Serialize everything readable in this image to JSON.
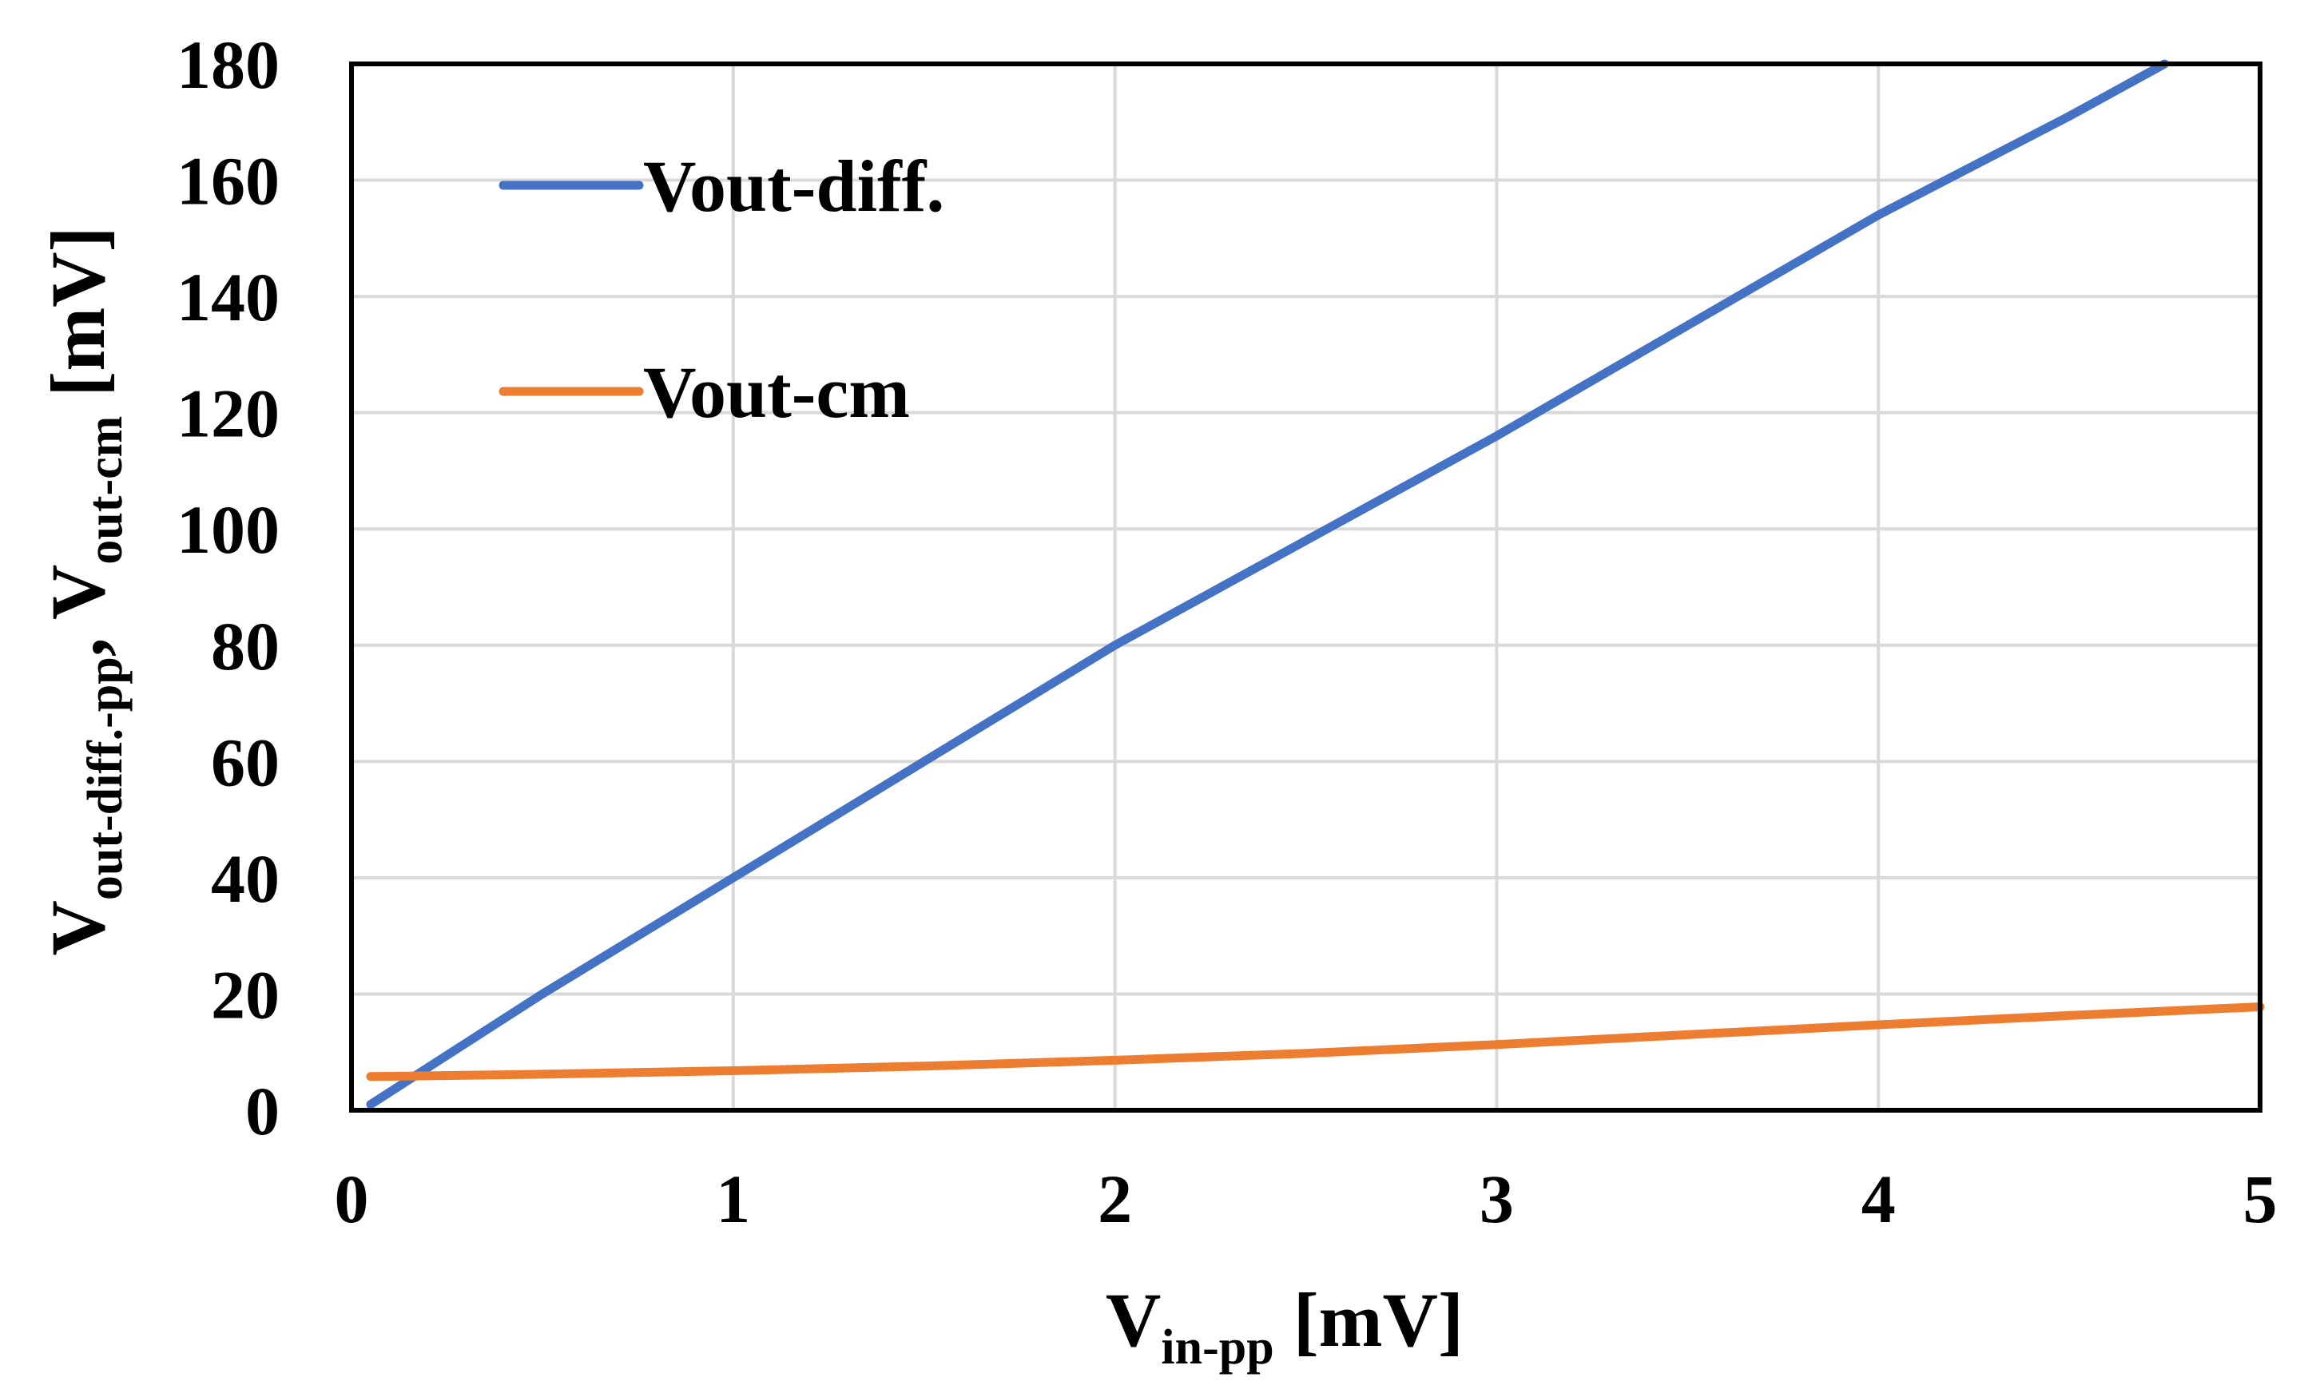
{
  "chart_data": {
    "type": "line",
    "title": "",
    "xlabel": {
      "main": "V",
      "sub": "in-pp",
      "unit": " [mV]"
    },
    "ylabel": {
      "main1": "V",
      "sub1": "out-diff.-pp",
      "sep": ", ",
      "main2": "V",
      "sub2": "out-cm",
      "unit": " [mV]"
    },
    "xlim": [
      0,
      5
    ],
    "ylim": [
      0,
      180
    ],
    "xticks": [
      "0",
      "1",
      "2",
      "3",
      "4",
      "5"
    ],
    "yticks": [
      "0",
      "20",
      "40",
      "60",
      "80",
      "100",
      "120",
      "140",
      "160",
      "180"
    ],
    "grid": true,
    "legend_position": "top-left",
    "series": [
      {
        "name": "Vout-diff.",
        "color": "#4472C4",
        "x": [
          0.05,
          0.5,
          1.0,
          1.5,
          2.0,
          2.5,
          3.0,
          3.5,
          4.0,
          4.5,
          4.75
        ],
        "y": [
          1,
          20,
          40,
          60,
          80,
          98,
          116,
          135,
          154,
          171,
          180
        ]
      },
      {
        "name": "Vout-cm",
        "color": "#ED7D31",
        "x": [
          0.05,
          0.5,
          1.0,
          1.5,
          2.0,
          2.5,
          3.0,
          3.5,
          4.0,
          4.5,
          5.0
        ],
        "y": [
          5.8,
          6.2,
          6.8,
          7.6,
          8.6,
          9.8,
          11.3,
          13.0,
          14.7,
          16.3,
          17.8
        ]
      }
    ]
  }
}
